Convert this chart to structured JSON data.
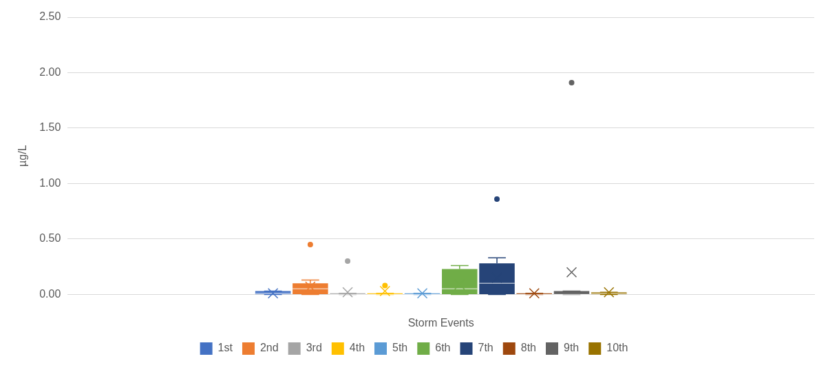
{
  "chart_data": {
    "type": "box",
    "xlabel": "Storm Events",
    "ylabel": "µg/L",
    "categories": [
      null
    ],
    "ylim": [
      0,
      2.5
    ],
    "yticks": [
      {
        "value": 0,
        "label": "0.00"
      },
      {
        "value": 0.5,
        "label": "0.50"
      },
      {
        "value": 1,
        "label": "1.00"
      },
      {
        "value": 1.5,
        "label": "1.50"
      },
      {
        "value": 2,
        "label": "2.00"
      },
      {
        "value": 2.5,
        "label": "2.50"
      }
    ],
    "grid": "y",
    "legend": "bottom",
    "series": [
      {
        "name": "1st",
        "color": "#4472c4",
        "boxes": [
          {
            "low": 0,
            "q1": 0,
            "median": 0.01,
            "q3": 0.03,
            "high": 0.03,
            "mean": 0.01
          }
        ]
      },
      {
        "name": "2nd",
        "color": "#ed7d31",
        "boxes": [
          {
            "low": 0,
            "q1": 0,
            "median": 0.05,
            "q3": 0.1,
            "high": 0.13,
            "mean": 0.07,
            "outliers": [
              0.45
            ]
          }
        ]
      },
      {
        "name": "3rd",
        "color": "#a5a5a5",
        "boxes": [
          {
            "low": 0,
            "q1": 0,
            "median": 0,
            "q3": 0.01,
            "high": 0.01,
            "mean": 0.02,
            "outliers": [
              0.3
            ]
          }
        ]
      },
      {
        "name": "4th",
        "color": "#ffc000",
        "boxes": [
          {
            "low": 0,
            "q1": 0,
            "median": 0,
            "q3": 0.01,
            "high": 0.01,
            "mean": 0.03,
            "outliers": [
              0.08
            ]
          }
        ]
      },
      {
        "name": "5th",
        "color": "#5b9bd5",
        "boxes": [
          {
            "low": 0,
            "q1": 0,
            "median": 0,
            "q3": 0.01,
            "high": 0.01,
            "mean": 0.01
          }
        ]
      },
      {
        "name": "6th",
        "color": "#70ad47",
        "boxes": [
          {
            "low": 0,
            "q1": 0,
            "median": 0.05,
            "q3": 0.23,
            "high": 0.26,
            "mean": 0.09
          }
        ]
      },
      {
        "name": "7th",
        "color": "#264478",
        "boxes": [
          {
            "low": 0,
            "q1": 0,
            "median": 0.1,
            "q3": 0.28,
            "high": 0.33,
            "mean": 0.15,
            "outliers": [
              0.86
            ]
          }
        ]
      },
      {
        "name": "8th",
        "color": "#9e480e",
        "boxes": [
          {
            "low": 0,
            "q1": 0,
            "median": 0,
            "q3": 0.01,
            "high": 0.01,
            "mean": 0.01
          }
        ]
      },
      {
        "name": "9th",
        "color": "#636363",
        "boxes": [
          {
            "low": 0,
            "q1": 0,
            "median": 0,
            "q3": 0.03,
            "high": 0.03,
            "mean": 0.2,
            "outliers": [
              1.91
            ]
          }
        ]
      },
      {
        "name": "10th",
        "color": "#997300",
        "boxes": [
          {
            "low": 0,
            "q1": 0,
            "median": 0.01,
            "q3": 0.02,
            "high": 0.02,
            "mean": 0.02
          }
        ]
      }
    ]
  }
}
